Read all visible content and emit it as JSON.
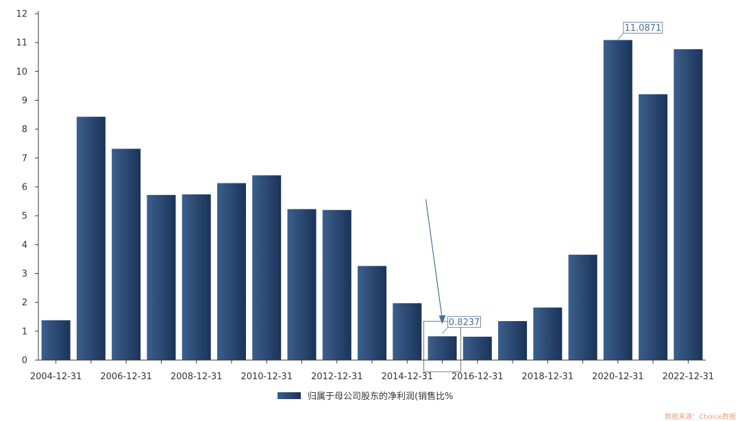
{
  "chart_data": {
    "type": "bar",
    "categories": [
      "2004-12-31",
      "2005-12-31",
      "2006-12-31",
      "2007-12-31",
      "2008-12-31",
      "2009-12-31",
      "2010-12-31",
      "2011-12-31",
      "2012-12-31",
      "2013-12-31",
      "2014-12-31",
      "2015-12-31",
      "2016-12-31",
      "2017-12-31",
      "2018-12-31",
      "2019-12-31",
      "2020-12-31",
      "2021-12-31",
      "2022-12-31"
    ],
    "x_tick_labels": [
      "2004-12-31",
      "2006-12-31",
      "2008-12-31",
      "2010-12-31",
      "2012-12-31",
      "2014-12-31",
      "2016-12-31",
      "2018-12-31",
      "2020-12-31",
      "2022-12-31"
    ],
    "series": [
      {
        "name": "归属于母公司股东的净利润(销售比%",
        "values": [
          1.38,
          8.43,
          7.32,
          5.72,
          5.74,
          6.13,
          6.4,
          5.23,
          5.2,
          3.26,
          1.97,
          0.8237,
          0.81,
          1.35,
          1.82,
          3.65,
          11.0871,
          9.21,
          10.77
        ]
      }
    ],
    "ylim": [
      0,
      12
    ],
    "yticks": [
      0,
      1,
      2,
      3,
      4,
      5,
      6,
      7,
      8,
      9,
      10,
      11,
      12
    ],
    "annotations": [
      {
        "category": "2015-12-31",
        "label": "0.8237"
      },
      {
        "category": "2020-12-31",
        "label": "11.0871"
      }
    ],
    "colors": {
      "bar_dark": "#1b3358",
      "bar_light": "#3b5f8c",
      "axis": "#333333",
      "annotation": "#4a6f95"
    },
    "grid": false,
    "legend_position": "bottom-center",
    "title": "",
    "xlabel": "",
    "ylabel": ""
  },
  "source_text": "数据来源：Choice数据"
}
